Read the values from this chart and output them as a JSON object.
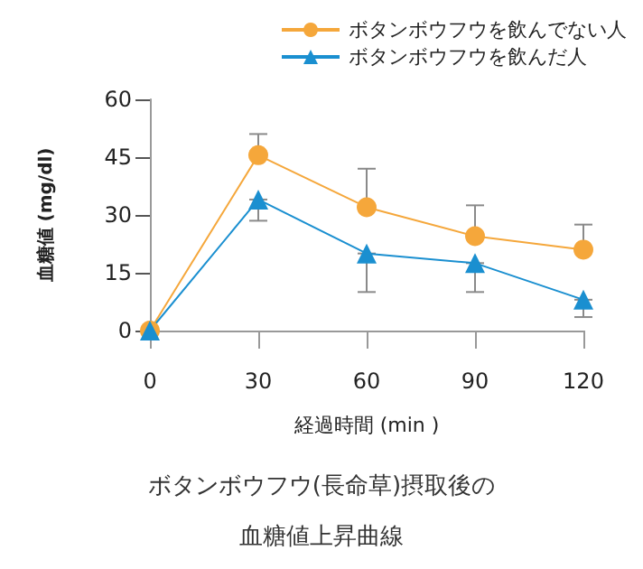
{
  "chart_data": {
    "type": "line",
    "title": "ボタンボウフウ(長命草)摂取後の",
    "subtitle": "血糖値上昇曲線",
    "xlabel": "経過時間 (min )",
    "ylabel": "血糖値 (mg/dl)",
    "x": [
      0,
      30,
      60,
      90,
      120
    ],
    "series": [
      {
        "name": "ボタンボウフウを飲んでない人",
        "color": "#f5a73b",
        "marker": "circle",
        "values": [
          0,
          45.5,
          32,
          24.5,
          21
        ],
        "errors": [
          null,
          [
            45.5,
            51
          ],
          [
            32,
            42
          ],
          [
            24.5,
            32.5
          ],
          [
            21,
            27.5
          ]
        ]
      },
      {
        "name": "ボタンボウフウを飲んだ人",
        "color": "#1a8fd0",
        "marker": "triangle",
        "values": [
          0,
          34,
          20,
          17.5,
          8
        ],
        "errors": [
          null,
          [
            28.5,
            34
          ],
          [
            10,
            20
          ],
          [
            10,
            17.5
          ],
          [
            3.5,
            8
          ]
        ]
      }
    ],
    "xlim": [
      0,
      120
    ],
    "xticks": [
      0,
      30,
      60,
      90,
      120
    ],
    "ylim": [
      0,
      60
    ],
    "yticks": [
      0,
      15,
      30,
      45,
      60
    ],
    "grid": false,
    "legend": "top",
    "line_style": "solid"
  }
}
